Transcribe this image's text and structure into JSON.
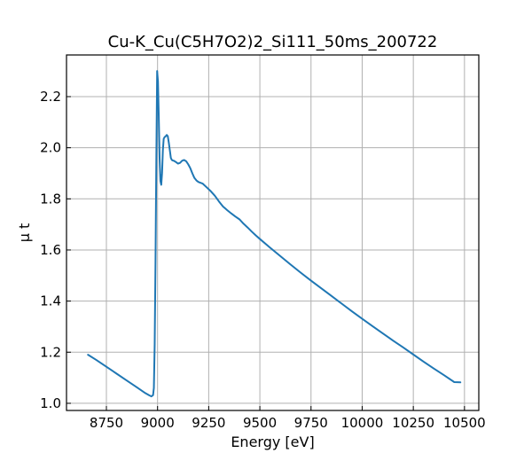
{
  "chart_data": {
    "type": "line",
    "title": "Cu-K_Cu(C5H7O2)2_Si111_50ms_200722",
    "xlabel": "Energy [eV]",
    "ylabel": "μ t",
    "xlim": [
      8555,
      10570
    ],
    "ylim": [
      0.972,
      2.363
    ],
    "grid": true,
    "xticks": [
      8750,
      9000,
      9250,
      9500,
      9750,
      10000,
      10250,
      10500
    ],
    "xtick_labels": [
      "8750",
      "9000",
      "9250",
      "9500",
      "9750",
      "10000",
      "10250",
      "10500"
    ],
    "yticks": [
      1.0,
      1.2,
      1.4,
      1.6,
      1.8,
      2.0,
      2.2
    ],
    "ytick_labels": [
      "1.0",
      "1.2",
      "1.4",
      "1.6",
      "1.8",
      "2.0",
      "2.2"
    ],
    "colors": {
      "line": "#1f77b4",
      "grid": "#b0b0b0",
      "axes": "#000000"
    },
    "series": [
      {
        "x": [
          8660,
          8700,
          8750,
          8800,
          8850,
          8900,
          8940,
          8960,
          8970,
          8978,
          8982,
          8986,
          8990,
          8994,
          8998,
          9002,
          9006,
          9010,
          9014,
          9018,
          9022,
          9026,
          9030,
          9035,
          9040,
          9045,
          9050,
          9055,
          9060,
          9065,
          9070,
          9075,
          9080,
          9090,
          9100,
          9110,
          9120,
          9130,
          9140,
          9150,
          9160,
          9170,
          9180,
          9190,
          9200,
          9220,
          9240,
          9260,
          9280,
          9300,
          9320,
          9340,
          9360,
          9380,
          9400,
          9420,
          9440,
          9460,
          9480,
          9500,
          9550,
          9600,
          9650,
          9700,
          9750,
          9800,
          9850,
          9900,
          9950,
          10000,
          10050,
          10100,
          10150,
          10200,
          10250,
          10300,
          10350,
          10400,
          10450,
          10480
        ],
        "y": [
          1.19,
          1.17,
          1.143,
          1.116,
          1.089,
          1.062,
          1.04,
          1.031,
          1.027,
          1.032,
          1.06,
          1.23,
          1.55,
          1.95,
          2.3,
          2.26,
          2.12,
          1.96,
          1.87,
          1.855,
          1.9,
          1.99,
          2.035,
          2.042,
          2.045,
          2.05,
          2.045,
          2.02,
          1.99,
          1.96,
          1.952,
          1.95,
          1.949,
          1.944,
          1.938,
          1.941,
          1.949,
          1.952,
          1.947,
          1.935,
          1.92,
          1.9,
          1.882,
          1.872,
          1.866,
          1.86,
          1.845,
          1.83,
          1.812,
          1.79,
          1.77,
          1.756,
          1.743,
          1.731,
          1.72,
          1.703,
          1.688,
          1.672,
          1.657,
          1.643,
          1.609,
          1.576,
          1.543,
          1.511,
          1.48,
          1.45,
          1.42,
          1.39,
          1.36,
          1.331,
          1.302,
          1.274,
          1.246,
          1.219,
          1.191,
          1.163,
          1.136,
          1.11,
          1.083,
          1.082
        ]
      }
    ]
  }
}
